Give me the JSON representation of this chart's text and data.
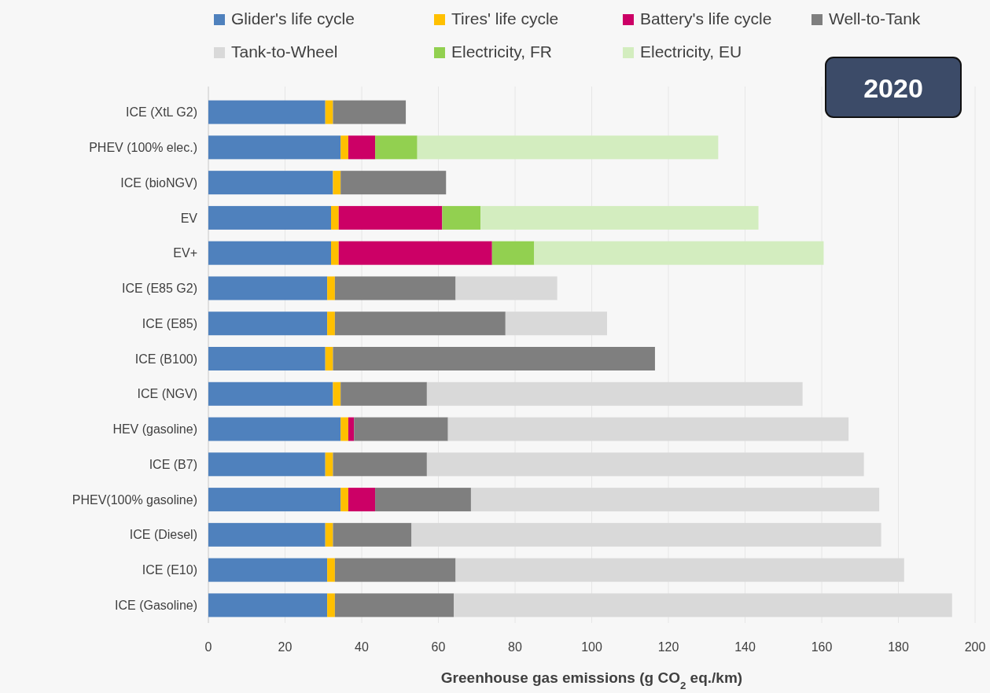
{
  "chart_data": {
    "type": "bar",
    "orientation": "horizontal",
    "stacked": true,
    "title": "2020",
    "xlabel": "Greenhouse gas emissions (g CO$_{2}$ eq./km)",
    "categories": [
      "ICE (XtL G2)",
      "PHEV (100% elec.)",
      "ICE (bioNGV)",
      "EV",
      "EV+",
      "ICE (E85 G2)",
      "ICE (E85)",
      "ICE (B100)",
      "ICE (NGV)",
      "HEV (gasoline)",
      "ICE (B7)",
      "PHEV(100% gasoline)",
      "ICE (Diesel)",
      "ICE (E10)",
      "ICE (Gasoline)"
    ],
    "series": [
      {
        "name": "Glider's life cycle",
        "color": "#4f81bd",
        "values": [
          30.5,
          34.5,
          32.5,
          32,
          32,
          31,
          31,
          30.5,
          32.5,
          34.5,
          30.5,
          34.5,
          30.5,
          31,
          31
        ]
      },
      {
        "name": "Tires' life cycle",
        "color": "#ffc000",
        "values": [
          2,
          2,
          2,
          2,
          2,
          2,
          2,
          2,
          2,
          2,
          2,
          2,
          2,
          2,
          2
        ]
      },
      {
        "name": "Battery's life cycle",
        "color": "#cc0066",
        "values": [
          null,
          7,
          null,
          27,
          40,
          null,
          null,
          null,
          null,
          1.5,
          null,
          7,
          null,
          null,
          null
        ]
      },
      {
        "name": "Well-to-Tank",
        "color": "#7f7f7f",
        "values": [
          19,
          null,
          27.5,
          null,
          null,
          31.5,
          44.5,
          84,
          22.5,
          24.5,
          24.5,
          25,
          20.5,
          31.5,
          31
        ]
      },
      {
        "name": "Tank-to-Wheel",
        "color": "#d9d9d9",
        "values": [
          null,
          null,
          null,
          null,
          null,
          26.5,
          26.5,
          null,
          98,
          104.5,
          114,
          106.5,
          122.5,
          117,
          130
        ]
      },
      {
        "name": "Electricity, FR",
        "color": "#92d050",
        "values": [
          null,
          11,
          null,
          10,
          11,
          null,
          null,
          null,
          null,
          null,
          null,
          null,
          null,
          null,
          null
        ]
      },
      {
        "name": "Electricity, EU",
        "color": "#d3edbf",
        "values": [
          null,
          78.5,
          null,
          72.5,
          75.5,
          null,
          null,
          null,
          null,
          null,
          null,
          null,
          null,
          null,
          null
        ]
      }
    ],
    "xlim": [
      0,
      200
    ],
    "xticks": [
      0,
      20,
      40,
      60,
      80,
      100,
      120,
      140,
      160,
      180,
      200
    ],
    "grid": "x",
    "legend": "top"
  }
}
